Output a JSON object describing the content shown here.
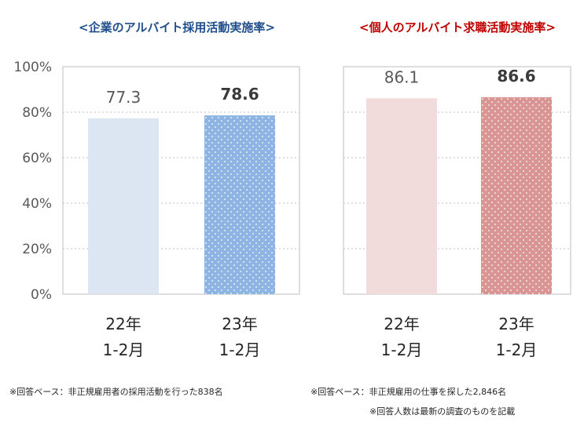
{
  "chart_data": [
    {
      "type": "bar",
      "title": "<企業のアルバイト採用活動実施率>",
      "title_color": "#1f4e8c",
      "categories": [
        {
          "year": "22年",
          "months": "1-2月"
        },
        {
          "year": "23年",
          "months": "1-2月"
        }
      ],
      "values": [
        77.3,
        78.6
      ],
      "value_labels": [
        "77.3",
        "78.6"
      ],
      "value_label_bold": [
        false,
        true
      ],
      "bar_colors": [
        "#dce6f2",
        "#8db4e2"
      ],
      "bar_dotted": [
        false,
        true
      ],
      "ylim": [
        0,
        100
      ],
      "yticks": [
        "0%",
        "20%",
        "40%",
        "60%",
        "80%",
        "100%"
      ],
      "grid": true,
      "note": "※回答ベース：非正規雇用者の採用活動を行った838名"
    },
    {
      "type": "bar",
      "title": "<個人のアルバイト求職活動実施率>",
      "title_color": "#c00000",
      "categories": [
        {
          "year": "22年",
          "months": "1-2月"
        },
        {
          "year": "23年",
          "months": "1-2月"
        }
      ],
      "values": [
        86.1,
        86.6
      ],
      "value_labels": [
        "86.1",
        "86.6"
      ],
      "value_label_bold": [
        false,
        true
      ],
      "bar_colors": [
        "#f2dcdb",
        "#d99594"
      ],
      "bar_dotted": [
        false,
        true
      ],
      "ylim": [
        0,
        100
      ],
      "grid": true,
      "note": "※回答ベース：非正規雇用の仕事を探した2,846名",
      "note2": "※回答人数は最新の調査のものを記載"
    }
  ]
}
